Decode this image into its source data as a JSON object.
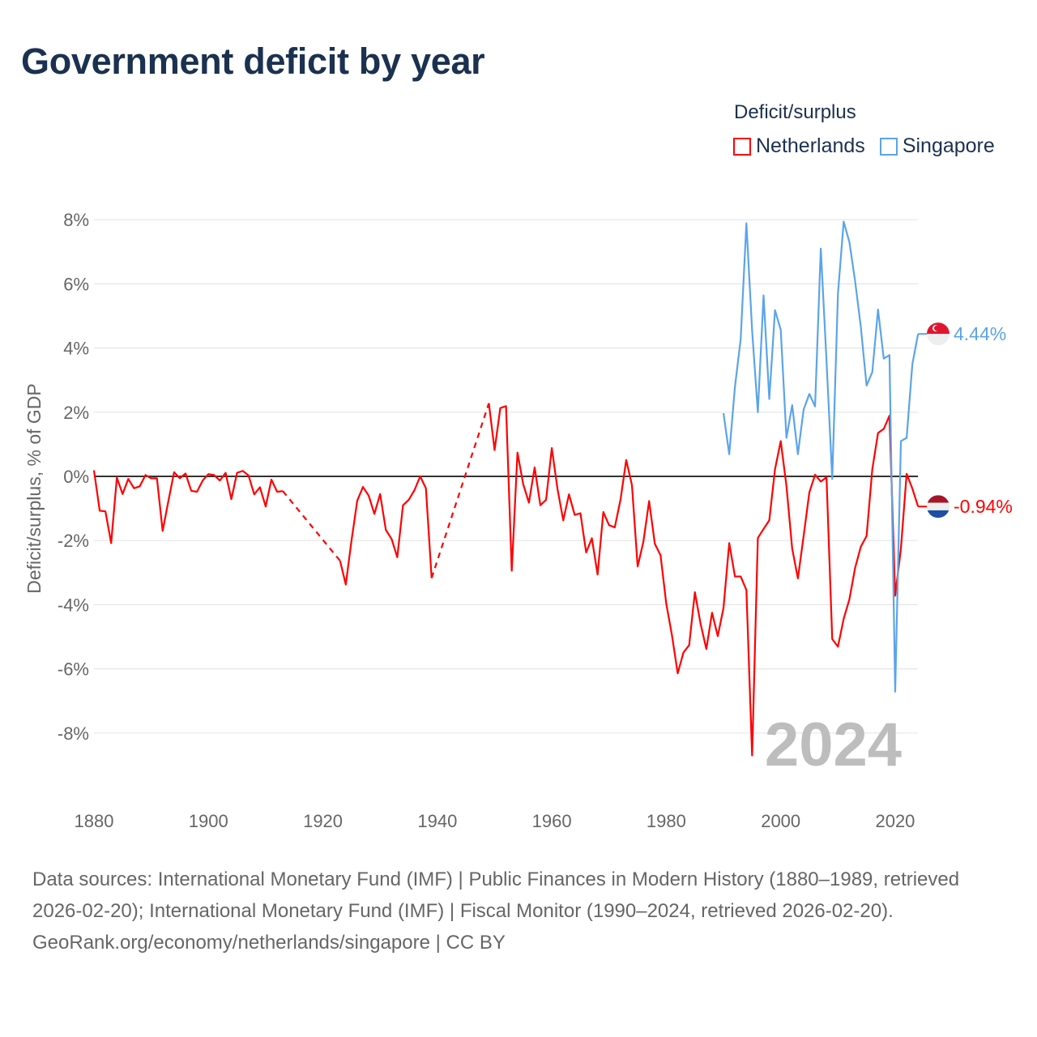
{
  "title": "Government deficit by year",
  "legend": {
    "title": "Deficit/surplus",
    "items": [
      {
        "label": "Netherlands",
        "color": "#ff0000"
      },
      {
        "label": "Singapore",
        "color": "#5ba4ea"
      }
    ]
  },
  "watermark_year": "2024",
  "footer": {
    "sources": "Data sources: International Monetary Fund (IMF) | Public Finances in Modern History (1880–1989, retrieved 2026-02-20); International Monetary Fund (IMF) | Fiscal Monitor (1990–2024, retrieved 2026-02-20).",
    "credit": "GeoRank.org/economy/netherlands/singapore | CC BY"
  },
  "chart_data": {
    "type": "line",
    "title": "Government deficit by year",
    "xlabel": "",
    "ylabel": "Deficit/surplus, % of GDP",
    "xlim": [
      1880,
      2024
    ],
    "ylim": [
      -9.5,
      8.3
    ],
    "x_ticks": [
      "1880",
      "1900",
      "1920",
      "1940",
      "1960",
      "1980",
      "2000",
      "2020"
    ],
    "x_tick_values": [
      1880,
      1900,
      1920,
      1940,
      1960,
      1980,
      2000,
      2020
    ],
    "y_ticks": [
      "8%",
      "6%",
      "4%",
      "2%",
      "0%",
      "-2%",
      "-4%",
      "-6%",
      "-8%"
    ],
    "y_tick_values": [
      8,
      6,
      4,
      2,
      0,
      -2,
      -4,
      -6,
      -8
    ],
    "grid": true,
    "legend_position": "top-right",
    "gap_style": "dashed",
    "series": [
      {
        "name": "Netherlands",
        "color": "#ff0000",
        "end_label": "-0.94%",
        "flag": "netherlands-flag",
        "points": [
          [
            1880,
            0.19
          ],
          [
            1881,
            -1.07
          ],
          [
            1882,
            -1.09
          ],
          [
            1883,
            -2.08
          ],
          [
            1884,
            -0.04
          ],
          [
            1885,
            -0.55
          ],
          [
            1886,
            -0.08
          ],
          [
            1887,
            -0.37
          ],
          [
            1888,
            -0.31
          ],
          [
            1889,
            0.04
          ],
          [
            1890,
            -0.06
          ],
          [
            1891,
            -0.06
          ],
          [
            1892,
            -1.7
          ],
          [
            1893,
            -0.77
          ],
          [
            1894,
            0.13
          ],
          [
            1895,
            -0.06
          ],
          [
            1896,
            0.09
          ],
          [
            1897,
            -0.45
          ],
          [
            1898,
            -0.48
          ],
          [
            1899,
            -0.13
          ],
          [
            1900,
            0.07
          ],
          [
            1901,
            0.04
          ],
          [
            1902,
            -0.13
          ],
          [
            1903,
            0.11
          ],
          [
            1904,
            -0.71
          ],
          [
            1905,
            0.11
          ],
          [
            1906,
            0.17
          ],
          [
            1907,
            0.03
          ],
          [
            1908,
            -0.56
          ],
          [
            1909,
            -0.34
          ],
          [
            1910,
            -0.94
          ],
          [
            1911,
            -0.1
          ],
          [
            1912,
            -0.48
          ],
          [
            1913,
            -0.46
          ],
          [
            1923,
            -2.63
          ],
          [
            1924,
            -3.37
          ],
          [
            1925,
            -2.0
          ],
          [
            1926,
            -0.76
          ],
          [
            1927,
            -0.33
          ],
          [
            1928,
            -0.6
          ],
          [
            1929,
            -1.17
          ],
          [
            1930,
            -0.55
          ],
          [
            1931,
            -1.67
          ],
          [
            1932,
            -1.95
          ],
          [
            1933,
            -2.52
          ],
          [
            1934,
            -0.9
          ],
          [
            1935,
            -0.73
          ],
          [
            1936,
            -0.43
          ],
          [
            1937,
            0.0
          ],
          [
            1938,
            -0.37
          ],
          [
            1939,
            -3.17
          ],
          [
            1949,
            2.28
          ],
          [
            1950,
            0.82
          ],
          [
            1951,
            2.13
          ],
          [
            1952,
            2.19
          ],
          [
            1953,
            -2.94
          ],
          [
            1954,
            0.74
          ],
          [
            1955,
            -0.24
          ],
          [
            1956,
            -0.82
          ],
          [
            1957,
            0.28
          ],
          [
            1958,
            -0.9
          ],
          [
            1959,
            -0.73
          ],
          [
            1960,
            0.88
          ],
          [
            1961,
            -0.4
          ],
          [
            1962,
            -1.37
          ],
          [
            1963,
            -0.56
          ],
          [
            1964,
            -1.2
          ],
          [
            1965,
            -1.15
          ],
          [
            1966,
            -2.37
          ],
          [
            1967,
            -1.93
          ],
          [
            1968,
            -3.06
          ],
          [
            1969,
            -1.11
          ],
          [
            1970,
            -1.52
          ],
          [
            1971,
            -1.59
          ],
          [
            1972,
            -0.73
          ],
          [
            1973,
            0.51
          ],
          [
            1974,
            -0.27
          ],
          [
            1975,
            -2.81
          ],
          [
            1976,
            -2.04
          ],
          [
            1977,
            -0.77
          ],
          [
            1978,
            -2.1
          ],
          [
            1979,
            -2.46
          ],
          [
            1980,
            -3.97
          ],
          [
            1981,
            -4.96
          ],
          [
            1982,
            -6.14
          ],
          [
            1983,
            -5.49
          ],
          [
            1984,
            -5.26
          ],
          [
            1985,
            -3.61
          ],
          [
            1986,
            -4.6
          ],
          [
            1987,
            -5.38
          ],
          [
            1988,
            -4.25
          ],
          [
            1989,
            -4.98
          ],
          [
            1990,
            -4.1
          ],
          [
            1991,
            -2.08
          ],
          [
            1992,
            -3.12
          ],
          [
            1993,
            -3.12
          ],
          [
            1994,
            -3.54
          ],
          [
            1995,
            -8.7
          ],
          [
            1996,
            -1.92
          ],
          [
            1997,
            -1.64
          ],
          [
            1998,
            -1.37
          ],
          [
            1999,
            0.22
          ],
          [
            2000,
            1.1
          ],
          [
            2001,
            -0.3
          ],
          [
            2002,
            -2.25
          ],
          [
            2003,
            -3.18
          ],
          [
            2004,
            -1.86
          ],
          [
            2005,
            -0.5
          ],
          [
            2006,
            0.05
          ],
          [
            2007,
            -0.16
          ],
          [
            2008,
            -0.03
          ],
          [
            2009,
            -5.07
          ],
          [
            2010,
            -5.31
          ],
          [
            2011,
            -4.44
          ],
          [
            2012,
            -3.83
          ],
          [
            2013,
            -2.85
          ],
          [
            2014,
            -2.19
          ],
          [
            2015,
            -1.86
          ],
          [
            2016,
            0.22
          ],
          [
            2017,
            1.35
          ],
          [
            2018,
            1.48
          ],
          [
            2019,
            1.89
          ],
          [
            2020,
            -3.72
          ],
          [
            2021,
            -2.25
          ],
          [
            2022,
            0.08
          ],
          [
            2023,
            -0.38
          ],
          [
            2024,
            -0.94
          ]
        ]
      },
      {
        "name": "Singapore",
        "color": "#5ba4ea",
        "end_label": "4.44%",
        "flag": "singapore-flag",
        "points": [
          [
            1990,
            1.97
          ],
          [
            1991,
            0.69
          ],
          [
            1992,
            2.79
          ],
          [
            1993,
            4.27
          ],
          [
            1994,
            7.89
          ],
          [
            1995,
            4.55
          ],
          [
            1996,
            2.0
          ],
          [
            1997,
            5.64
          ],
          [
            1998,
            2.41
          ],
          [
            1999,
            5.18
          ],
          [
            2000,
            4.57
          ],
          [
            2001,
            1.2
          ],
          [
            2002,
            2.22
          ],
          [
            2003,
            0.69
          ],
          [
            2004,
            2.08
          ],
          [
            2005,
            2.57
          ],
          [
            2006,
            2.18
          ],
          [
            2007,
            7.1
          ],
          [
            2008,
            3.6
          ],
          [
            2009,
            -0.08
          ],
          [
            2010,
            5.7
          ],
          [
            2011,
            7.94
          ],
          [
            2012,
            7.3
          ],
          [
            2013,
            6.08
          ],
          [
            2014,
            4.65
          ],
          [
            2015,
            2.83
          ],
          [
            2016,
            3.25
          ],
          [
            2017,
            5.2
          ],
          [
            2018,
            3.67
          ],
          [
            2019,
            3.78
          ],
          [
            2020,
            -6.71
          ],
          [
            2021,
            1.1
          ],
          [
            2022,
            1.2
          ],
          [
            2023,
            3.5
          ],
          [
            2024,
            4.44
          ]
        ]
      }
    ]
  }
}
